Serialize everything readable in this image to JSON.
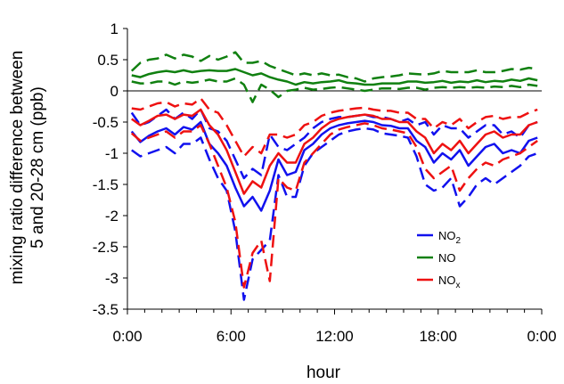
{
  "chart_data": {
    "type": "line",
    "title": "",
    "xlabel": "hour",
    "ylabel_lines": [
      "mixing ratio difference between",
      "5 and 20-28 cm (ppb)"
    ],
    "ylim": [
      -3.5,
      1
    ],
    "xlim": [
      0,
      24
    ],
    "y_ticks": [
      {
        "value": 1,
        "label": "1"
      },
      {
        "value": 0.5,
        "label": "0.5"
      },
      {
        "value": 0,
        "label": "0"
      },
      {
        "value": -0.5,
        "label": "-0.5"
      },
      {
        "value": -1,
        "label": "-1"
      },
      {
        "value": -1.5,
        "label": "-1.5"
      },
      {
        "value": -2,
        "label": "-2"
      },
      {
        "value": -2.5,
        "label": "-2.5"
      },
      {
        "value": -3,
        "label": "-3"
      },
      {
        "value": -3.5,
        "label": "-3.5"
      }
    ],
    "x_ticks": [
      {
        "value": 0,
        "label": "0:00"
      },
      {
        "value": 6,
        "label": "6:00"
      },
      {
        "value": 12,
        "label": "12:00"
      },
      {
        "value": 18,
        "label": "18:00"
      },
      {
        "value": 24,
        "label": "0:00"
      }
    ],
    "grid": false,
    "zero_line": true,
    "legend_position": "lower-right",
    "x": [
      0.25,
      0.75,
      1.25,
      1.75,
      2.25,
      2.75,
      3.25,
      3.75,
      4.25,
      4.75,
      5.25,
      5.75,
      6.25,
      6.75,
      7.25,
      7.75,
      8.25,
      8.75,
      9.25,
      9.75,
      10.25,
      10.75,
      11.25,
      11.75,
      12.25,
      12.75,
      13.25,
      13.75,
      14.25,
      14.75,
      15.25,
      15.75,
      16.25,
      16.75,
      17.25,
      17.75,
      18.25,
      18.75,
      19.25,
      19.75,
      20.25,
      20.75,
      21.25,
      21.75,
      22.25,
      22.75,
      23.25,
      23.75
    ],
    "series": [
      {
        "name": "NO",
        "name_sub": "2",
        "color": "#1111ee",
        "mean": [
          -0.65,
          -0.82,
          -0.72,
          -0.65,
          -0.6,
          -0.7,
          -0.58,
          -0.62,
          -0.5,
          -0.85,
          -1.0,
          -1.2,
          -1.55,
          -1.85,
          -1.7,
          -1.92,
          -1.6,
          -1.1,
          -1.35,
          -1.3,
          -0.95,
          -0.85,
          -0.7,
          -0.6,
          -0.55,
          -0.52,
          -0.5,
          -0.48,
          -0.5,
          -0.55,
          -0.56,
          -0.6,
          -0.6,
          -0.8,
          -0.9,
          -1.15,
          -1.0,
          -1.1,
          -0.95,
          -1.2,
          -1.05,
          -0.9,
          -0.85,
          -1.0,
          -0.95,
          -1.0,
          -0.8,
          -0.75
        ],
        "upper": [
          -0.35,
          -0.55,
          -0.5,
          -0.4,
          -0.3,
          -0.45,
          -0.35,
          -0.45,
          -0.3,
          -0.6,
          -0.65,
          -0.8,
          -1.1,
          -1.4,
          -1.25,
          -1.35,
          -0.7,
          -0.9,
          -0.95,
          -0.85,
          -0.75,
          -0.6,
          -0.5,
          -0.45,
          -0.42,
          -0.42,
          -0.4,
          -0.38,
          -0.42,
          -0.42,
          -0.45,
          -0.5,
          -0.45,
          -0.55,
          -0.5,
          -0.7,
          -0.55,
          -0.6,
          -0.6,
          -0.75,
          -0.65,
          -0.55,
          -0.55,
          -0.7,
          -0.65,
          -0.75,
          -0.55,
          -0.5
        ],
        "lower": [
          -0.95,
          -1.05,
          -1.0,
          -0.95,
          -0.9,
          -1.0,
          -0.85,
          -0.85,
          -0.75,
          -1.1,
          -1.4,
          -1.6,
          -2.25,
          -3.35,
          -2.7,
          -2.55,
          -2.4,
          -1.35,
          -1.7,
          -1.7,
          -1.2,
          -1.0,
          -0.9,
          -0.8,
          -0.7,
          -0.65,
          -0.62,
          -0.6,
          -0.62,
          -0.68,
          -0.7,
          -0.72,
          -0.75,
          -1.05,
          -1.5,
          -1.6,
          -1.55,
          -1.4,
          -1.85,
          -1.7,
          -1.5,
          -1.4,
          -1.5,
          -1.4,
          -1.3,
          -1.2,
          -1.05,
          -1.0
        ]
      },
      {
        "name": "NO",
        "name_sub": "",
        "color": "#108010",
        "mean": [
          0.25,
          0.22,
          0.27,
          0.3,
          0.32,
          0.3,
          0.33,
          0.3,
          0.32,
          0.33,
          0.32,
          0.32,
          0.35,
          0.3,
          0.25,
          0.28,
          0.22,
          0.18,
          0.15,
          0.1,
          0.14,
          0.12,
          0.14,
          0.15,
          0.17,
          0.13,
          0.12,
          0.1,
          0.1,
          0.12,
          0.12,
          0.12,
          0.15,
          0.15,
          0.13,
          0.14,
          0.16,
          0.13,
          0.15,
          0.14,
          0.17,
          0.14,
          0.16,
          0.15,
          0.18,
          0.16,
          0.2,
          0.17
        ],
        "upper": [
          0.32,
          0.45,
          0.5,
          0.52,
          0.58,
          0.52,
          0.58,
          0.55,
          0.48,
          0.56,
          0.5,
          0.55,
          0.62,
          0.45,
          0.45,
          0.48,
          0.4,
          0.35,
          0.3,
          0.25,
          0.28,
          0.25,
          0.28,
          0.25,
          0.26,
          0.22,
          0.2,
          0.15,
          0.2,
          0.22,
          0.23,
          0.25,
          0.28,
          0.27,
          0.26,
          0.28,
          0.32,
          0.3,
          0.3,
          0.3,
          0.33,
          0.3,
          0.3,
          0.32,
          0.35,
          0.34,
          0.37,
          0.35
        ],
        "lower": [
          0.15,
          0.12,
          0.12,
          0.15,
          0.15,
          0.1,
          0.15,
          0.13,
          0.15,
          0.18,
          0.15,
          0.15,
          0.2,
          0.1,
          -0.18,
          0.1,
          0.02,
          -0.1,
          0.0,
          0.02,
          0.05,
          0.02,
          0.03,
          0.05,
          0.06,
          0.04,
          0.02,
          0.0,
          0.02,
          0.04,
          0.04,
          0.03,
          0.05,
          0.05,
          0.02,
          0.05,
          0.06,
          0.05,
          0.06,
          0.05,
          0.06,
          0.05,
          0.07,
          0.06,
          0.08,
          0.06,
          0.1,
          0.08
        ]
      },
      {
        "name": "NO",
        "name_sub": "x",
        "color": "#ee1111",
        "mean": [
          -0.45,
          -0.55,
          -0.48,
          -0.4,
          -0.38,
          -0.45,
          -0.38,
          -0.4,
          -0.3,
          -0.55,
          -0.7,
          -0.95,
          -1.3,
          -1.65,
          -1.45,
          -1.55,
          -1.2,
          -1.0,
          -1.15,
          -1.15,
          -0.85,
          -0.75,
          -0.6,
          -0.5,
          -0.45,
          -0.42,
          -0.4,
          -0.38,
          -0.4,
          -0.45,
          -0.45,
          -0.5,
          -0.5,
          -0.65,
          -0.75,
          -1.0,
          -0.85,
          -0.95,
          -0.8,
          -1.0,
          -0.85,
          -0.7,
          -0.65,
          -0.75,
          -0.7,
          -0.7,
          -0.55,
          -0.5
        ],
        "upper": [
          -0.28,
          -0.3,
          -0.25,
          -0.2,
          -0.18,
          -0.25,
          -0.2,
          -0.22,
          -0.12,
          -0.3,
          -0.35,
          -0.55,
          -0.8,
          -1.05,
          -0.9,
          -1.0,
          -0.7,
          -0.7,
          -0.75,
          -0.7,
          -0.55,
          -0.5,
          -0.4,
          -0.35,
          -0.32,
          -0.3,
          -0.28,
          -0.27,
          -0.3,
          -0.32,
          -0.32,
          -0.35,
          -0.35,
          -0.45,
          -0.45,
          -0.6,
          -0.5,
          -0.55,
          -0.45,
          -0.6,
          -0.5,
          -0.42,
          -0.4,
          -0.45,
          -0.42,
          -0.42,
          -0.35,
          -0.3
        ],
        "lower": [
          -0.68,
          -0.8,
          -0.75,
          -0.7,
          -0.65,
          -0.75,
          -0.65,
          -0.65,
          -0.55,
          -0.85,
          -1.2,
          -1.55,
          -2.1,
          -3.15,
          -2.6,
          -2.4,
          -3.05,
          -1.4,
          -1.55,
          -1.6,
          -1.15,
          -1.0,
          -0.85,
          -0.7,
          -0.62,
          -0.58,
          -0.55,
          -0.52,
          -0.55,
          -0.6,
          -0.62,
          -0.65,
          -0.68,
          -0.9,
          -1.25,
          -1.4,
          -1.3,
          -1.2,
          -1.6,
          -1.4,
          -1.25,
          -1.15,
          -1.2,
          -1.1,
          -1.05,
          -1.0,
          -0.9,
          -0.8
        ]
      }
    ]
  }
}
